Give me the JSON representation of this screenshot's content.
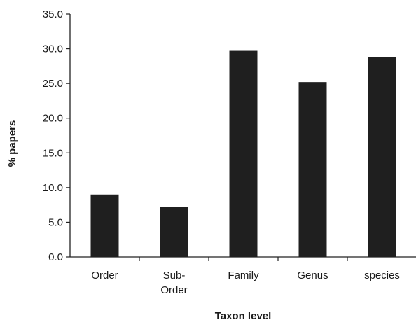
{
  "chart_data": {
    "type": "bar",
    "title": "",
    "xlabel": "Taxon level",
    "ylabel": "% papers",
    "categories": [
      [
        "Order"
      ],
      [
        "Sub-",
        "Order"
      ],
      [
        "Family"
      ],
      [
        "Genus"
      ],
      [
        "species"
      ]
    ],
    "values": [
      9.0,
      7.2,
      29.7,
      25.2,
      28.8
    ],
    "ylim": [
      0,
      35
    ],
    "yticks": [
      "0.0",
      "5.0",
      "10.0",
      "15.0",
      "20.0",
      "25.0",
      "30.0",
      "35.0"
    ],
    "grid": false,
    "legend": "none",
    "bar_color": "#1f1f1f"
  }
}
